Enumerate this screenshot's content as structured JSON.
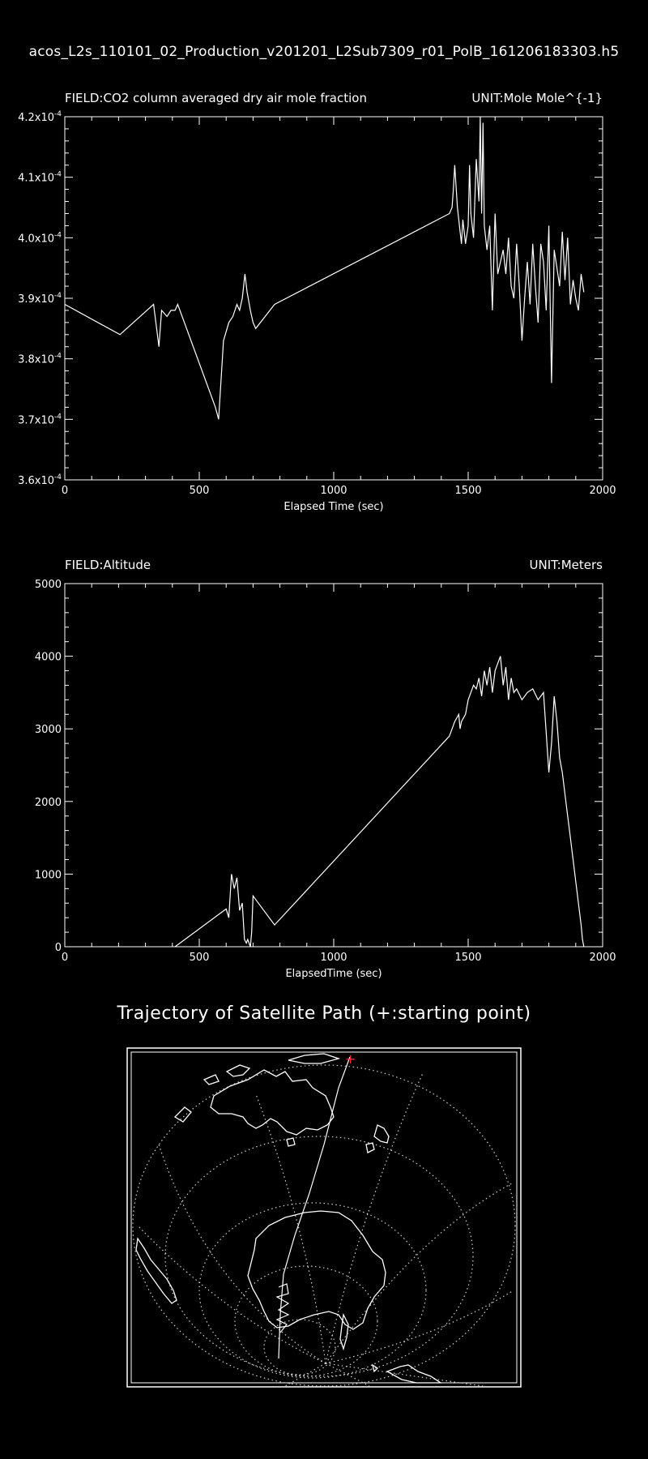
{
  "file_title": "acos_L2s_110101_02_Production_v201201_L2Sub7309_r01_PolB_161206183303.h5",
  "map": {
    "title": "Trajectory of Satellite Path (+:starting point)",
    "start_marker": "+",
    "colors": {
      "coast": "#ffffff",
      "grid": "#cfcfcf",
      "start": "#ff2a2a"
    }
  },
  "chart_data": [
    {
      "type": "line",
      "field_label": "FIELD:CO2 column averaged dry air mole fraction",
      "unit_label": "UNIT:Mole Mole^{-1}",
      "xlabel": "Elapsed Time (sec)",
      "xlim": [
        0,
        2000
      ],
      "ylim": [
        0.00036,
        0.00042
      ],
      "xticks": [
        "0",
        "500",
        "1000",
        "1500",
        "2000"
      ],
      "yticks": [
        {
          "mant": "3.6x10",
          "exp": "-4"
        },
        {
          "mant": "3.7x10",
          "exp": "-4"
        },
        {
          "mant": "3.8x10",
          "exp": "-4"
        },
        {
          "mant": "3.9x10",
          "exp": "-4"
        },
        {
          "mant": "4.0x10",
          "exp": "-4"
        },
        {
          "mant": "4.1x10",
          "exp": "-4"
        },
        {
          "mant": "4.2x10",
          "exp": "-4"
        }
      ],
      "x": [
        0,
        205,
        330,
        350,
        360,
        380,
        395,
        410,
        420,
        560,
        572,
        590,
        610,
        625,
        640,
        650,
        660,
        670,
        678,
        690,
        700,
        710,
        780,
        1430,
        1440,
        1445,
        1450,
        1460,
        1475,
        1480,
        1490,
        1500,
        1505,
        1510,
        1520,
        1530,
        1540,
        1545,
        1550,
        1555,
        1560,
        1570,
        1580,
        1590,
        1600,
        1610,
        1620,
        1630,
        1640,
        1650,
        1660,
        1670,
        1680,
        1690,
        1700,
        1710,
        1720,
        1730,
        1740,
        1750,
        1760,
        1770,
        1780,
        1790,
        1800,
        1810,
        1820,
        1830,
        1840,
        1850,
        1860,
        1870,
        1880,
        1890,
        1900,
        1910,
        1920,
        1930
      ],
      "y": [
        0.000389,
        0.000384,
        0.000389,
        0.000382,
        0.000388,
        0.000387,
        0.000388,
        0.000388,
        0.000389,
        0.000372,
        0.00037,
        0.000383,
        0.000386,
        0.000387,
        0.000389,
        0.000388,
        0.00039,
        0.000394,
        0.000391,
        0.000388,
        0.000386,
        0.000385,
        0.000389,
        0.000404,
        0.000405,
        0.000408,
        0.000412,
        0.000405,
        0.000399,
        0.000403,
        0.000399,
        0.000402,
        0.000412,
        0.000404,
        0.0004,
        0.000413,
        0.000406,
        0.00042,
        0.000404,
        0.000419,
        0.000402,
        0.000398,
        0.000402,
        0.000388,
        0.000404,
        0.000394,
        0.000396,
        0.000398,
        0.000394,
        0.0004,
        0.000392,
        0.00039,
        0.000399,
        0.000392,
        0.000383,
        0.00039,
        0.000396,
        0.000389,
        0.000399,
        0.000392,
        0.000386,
        0.000399,
        0.000396,
        0.000388,
        0.000402,
        0.000376,
        0.000398,
        0.000395,
        0.000392,
        0.000401,
        0.000393,
        0.0004,
        0.000389,
        0.000393,
        0.00039,
        0.000388,
        0.000394,
        0.000391
      ]
    },
    {
      "type": "line",
      "field_label": "FIELD:Altitude",
      "unit_label": "UNIT:Meters",
      "xlabel": "ElapsedTime (sec)",
      "xlim": [
        0,
        2000
      ],
      "ylim": [
        0,
        5000
      ],
      "xticks": [
        "0",
        "500",
        "1000",
        "1500",
        "2000"
      ],
      "yticks": [
        "0",
        "1000",
        "2000",
        "3000",
        "4000",
        "5000"
      ],
      "x": [
        410,
        600,
        610,
        620,
        630,
        640,
        650,
        660,
        668,
        675,
        680,
        690,
        695,
        700,
        710,
        780,
        1430,
        1450,
        1465,
        1470,
        1475,
        1490,
        1500,
        1510,
        1520,
        1530,
        1540,
        1550,
        1560,
        1570,
        1580,
        1590,
        1600,
        1610,
        1620,
        1630,
        1640,
        1650,
        1660,
        1670,
        1680,
        1700,
        1720,
        1740,
        1760,
        1780,
        1800,
        1810,
        1820,
        1830,
        1840,
        1850,
        1860,
        1870,
        1880,
        1890,
        1900,
        1910,
        1920,
        1925,
        1930
      ],
      "y": [
        0,
        520,
        400,
        1000,
        800,
        950,
        500,
        600,
        100,
        50,
        100,
        0,
        200,
        700,
        650,
        300,
        2900,
        3100,
        3200,
        3000,
        3100,
        3200,
        3400,
        3500,
        3600,
        3550,
        3700,
        3450,
        3800,
        3600,
        3850,
        3500,
        3800,
        3900,
        4000,
        3600,
        3850,
        3400,
        3700,
        3500,
        3550,
        3400,
        3500,
        3550,
        3400,
        3500,
        2400,
        2800,
        3450,
        3100,
        2600,
        2400,
        2100,
        1800,
        1500,
        1200,
        900,
        600,
        300,
        100,
        0
      ]
    }
  ]
}
